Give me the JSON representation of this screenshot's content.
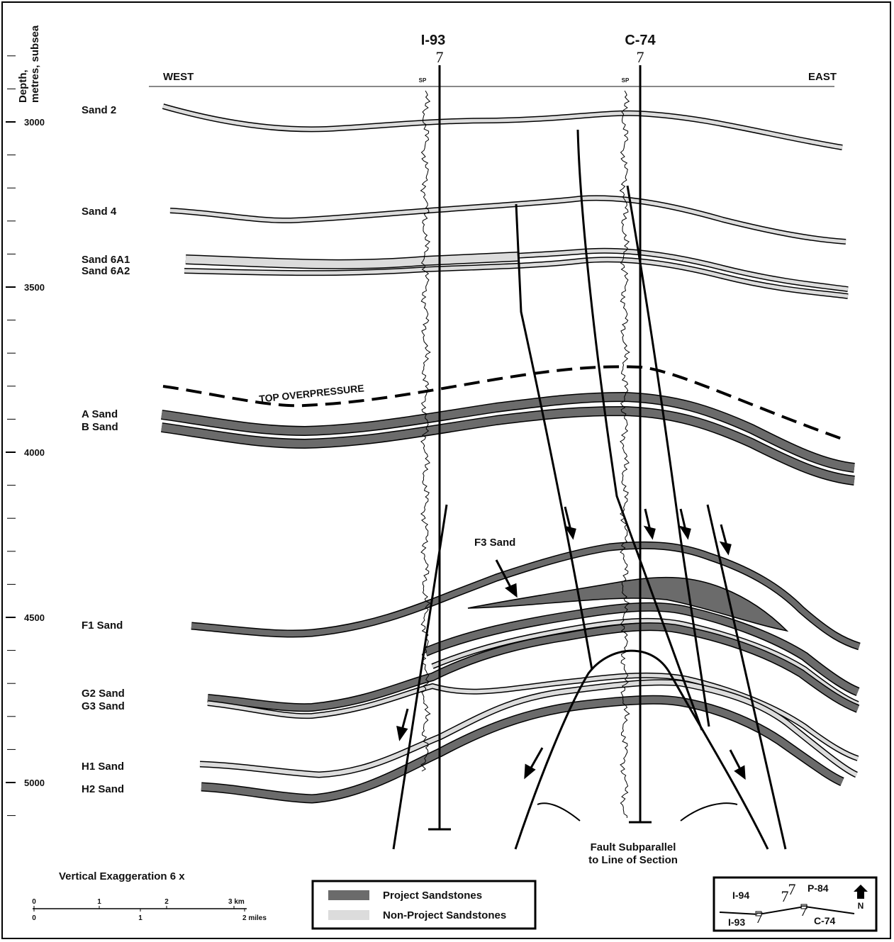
{
  "axis": {
    "label": [
      "Depth,",
      "metres, subsea"
    ],
    "ticks": [
      3000,
      3500,
      4000,
      4500,
      5000
    ]
  },
  "wells": [
    {
      "name": "I-93",
      "symbol": "7",
      "log": "SP"
    },
    {
      "name": "C-74",
      "symbol": "7",
      "log": "SP"
    }
  ],
  "directions": {
    "west": "WEST",
    "east": "EAST"
  },
  "sands": [
    "Sand 2",
    "Sand 4",
    "Sand 6A1",
    "Sand 6A2",
    "A Sand",
    "B Sand",
    "F3 Sand",
    "F1 Sand",
    "G2 Sand",
    "G3 Sand",
    "H1 Sand",
    "H2 Sand"
  ],
  "annotations": {
    "overpressure": "TOP OVERPRESSURE",
    "fault_note": [
      "Fault Subparallel",
      "to Line of Section"
    ]
  },
  "exaggeration": "Vertical Exaggeration 6 x",
  "scale": {
    "km": [
      "0",
      "1",
      "2",
      "3 km"
    ],
    "miles": [
      "0",
      "1",
      "2 miles"
    ]
  },
  "legend": [
    "Project Sandstones",
    "Non-Project Sandstones"
  ],
  "location_map": {
    "wells": [
      "I-94",
      "P-84",
      "I-93",
      "C-74"
    ],
    "symbol": "7",
    "north": "N"
  }
}
